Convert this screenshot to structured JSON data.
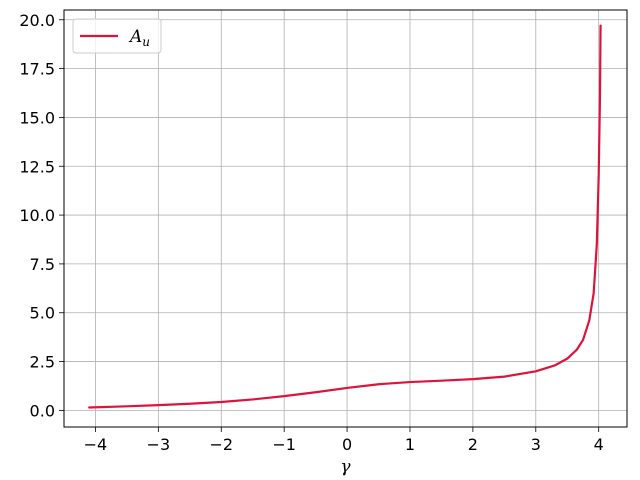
{
  "chart_data": {
    "type": "line",
    "title": "",
    "xlabel": "γ",
    "ylabel": "",
    "xlim": [
      -4.5,
      4.45
    ],
    "ylim": [
      -0.85,
      20.5
    ],
    "grid": true,
    "legend_position": "top-left",
    "xticks": [
      -4,
      -3,
      -2,
      -1,
      0,
      1,
      2,
      3,
      4
    ],
    "xtick_labels": [
      "−4",
      "−3",
      "−2",
      "−1",
      "0",
      "1",
      "2",
      "3",
      "4"
    ],
    "yticks": [
      0,
      2.5,
      5,
      7.5,
      10,
      12.5,
      15,
      17.5,
      20
    ],
    "ytick_labels": [
      "0.0",
      "2.5",
      "5.0",
      "7.5",
      "10.0",
      "12.5",
      "15.0",
      "17.5",
      "20.0"
    ],
    "series": [
      {
        "name": "A",
        "name_subscript": "u",
        "color": "#dc143c",
        "x": [
          -4.1,
          -3.5,
          -3.0,
          -2.5,
          -2.0,
          -1.5,
          -1.0,
          -0.5,
          0.0,
          0.5,
          1.0,
          1.5,
          2.0,
          2.5,
          3.0,
          3.3,
          3.5,
          3.65,
          3.75,
          3.85,
          3.92,
          3.97,
          4.0,
          4.02,
          4.03
        ],
        "y": [
          0.15,
          0.21,
          0.27,
          0.34,
          0.43,
          0.56,
          0.73,
          0.93,
          1.15,
          1.34,
          1.45,
          1.52,
          1.6,
          1.73,
          2.0,
          2.3,
          2.65,
          3.1,
          3.6,
          4.6,
          6.0,
          8.5,
          12.0,
          16.0,
          19.7
        ]
      }
    ]
  }
}
